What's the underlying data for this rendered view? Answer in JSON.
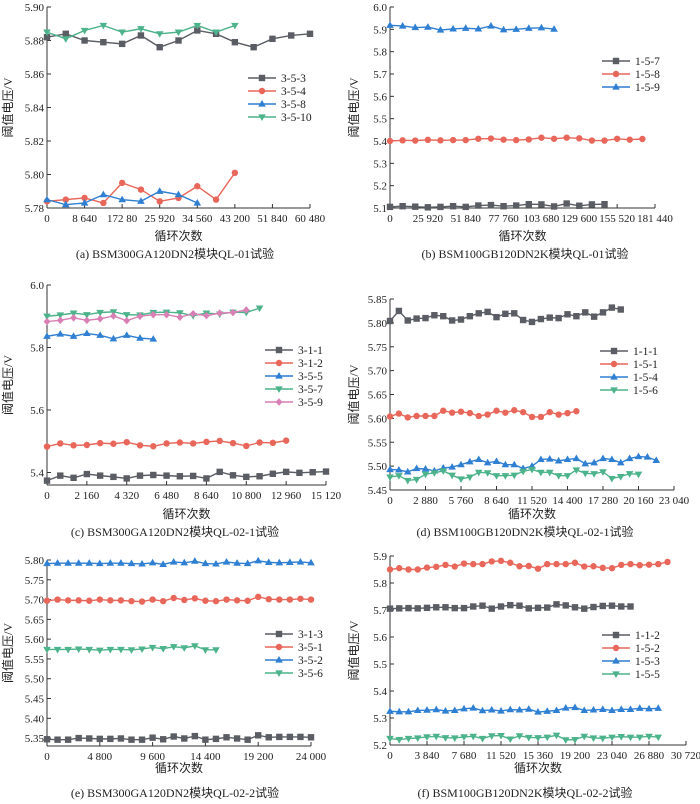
{
  "figure": {
    "colors": {
      "gray": "#5a5d63",
      "red": "#e8665a",
      "blue": "#2f7fd3",
      "green": "#4db38a",
      "pink": "#d97fb4"
    }
  },
  "chart_data": [
    {
      "id": "a",
      "type": "line",
      "caption": "(a) BSM300GA120DN2模块QL-01试验",
      "xlabel": "循环次数",
      "ylabel": "阈值电压/V",
      "xlim": [
        0,
        60480
      ],
      "ylim": [
        5.78,
        5.9
      ],
      "xticks": [
        0,
        8640,
        17280,
        25920,
        34560,
        43200,
        51840,
        60480
      ],
      "xtick_labels": [
        "0",
        "8 640",
        "172 80",
        "25 920",
        "34 560",
        "43 200",
        "51 840",
        "60 480"
      ],
      "yticks": [
        5.78,
        5.8,
        5.82,
        5.84,
        5.86,
        5.88,
        5.9
      ],
      "ytick_labels": [
        "5.78",
        "5.80",
        "5.82",
        "5.84",
        "5.86",
        "5.88",
        "5.90"
      ],
      "legend": "center-right",
      "series": [
        {
          "name": "3-5-3",
          "color": "gray",
          "marker": "square",
          "step": 4320,
          "values": [
            5.882,
            5.884,
            5.88,
            5.879,
            5.878,
            5.883,
            5.876,
            5.88,
            5.886,
            5.884,
            5.879,
            5.876,
            5.881,
            5.883,
            5.884
          ]
        },
        {
          "name": "3-5-4",
          "color": "red",
          "marker": "circle",
          "step": 4320,
          "values": [
            5.784,
            5.785,
            5.786,
            5.783,
            5.795,
            5.791,
            5.784,
            5.786,
            5.793,
            5.785,
            5.801
          ]
        },
        {
          "name": "3-5-8",
          "color": "blue",
          "marker": "triangle-up",
          "step": 4320,
          "values": [
            5.785,
            5.782,
            5.783,
            5.788,
            5.785,
            5.784,
            5.79,
            5.788,
            5.783
          ]
        },
        {
          "name": "3-5-10",
          "color": "green",
          "marker": "triangle-down",
          "step": 4320,
          "values": [
            5.885,
            5.881,
            5.886,
            5.889,
            5.885,
            5.887,
            5.884,
            5.885,
            5.889,
            5.885,
            5.889
          ]
        }
      ]
    },
    {
      "id": "b",
      "type": "line",
      "caption": "(b) BSM100GB120DN2K模块QL-01试验",
      "xlabel": "循环次数",
      "ylabel": "阈值电压/V",
      "xlim": [
        0,
        181440
      ],
      "ylim": [
        5.1,
        6.0
      ],
      "xticks": [
        0,
        25920,
        51840,
        77760,
        103680,
        129600,
        155520,
        181440
      ],
      "xtick_labels": [
        "0",
        "25 920",
        "51 840",
        "77 760",
        "103 680",
        "129 600",
        "155 520",
        "181 440"
      ],
      "yticks": [
        5.1,
        5.2,
        5.3,
        5.4,
        5.5,
        5.6,
        5.7,
        5.8,
        5.9,
        6.0
      ],
      "ytick_labels": [
        "5.1",
        "5.2",
        "5.3",
        "5.4",
        "5.5",
        "5.6",
        "5.7",
        "5.8",
        "5.9",
        "6.0"
      ],
      "legend": "upper-right",
      "series": [
        {
          "name": "1-5-7",
          "color": "gray",
          "marker": "square",
          "step": 8640,
          "values": [
            5.105,
            5.108,
            5.106,
            5.103,
            5.105,
            5.108,
            5.105,
            5.111,
            5.113,
            5.108,
            5.111,
            5.117,
            5.116,
            5.107,
            5.12,
            5.11,
            5.116,
            5.117
          ]
        },
        {
          "name": "1-5-8",
          "color": "red",
          "marker": "circle",
          "step": 8640,
          "values": [
            5.4,
            5.403,
            5.402,
            5.405,
            5.403,
            5.404,
            5.404,
            5.41,
            5.411,
            5.406,
            5.404,
            5.407,
            5.415,
            5.41,
            5.415,
            5.412,
            5.402,
            5.402,
            5.41,
            5.406,
            5.409
          ]
        },
        {
          "name": "1-5-9",
          "color": "blue",
          "marker": "triangle-up",
          "step": 8640,
          "values": [
            5.918,
            5.915,
            5.908,
            5.91,
            5.897,
            5.902,
            5.905,
            5.902,
            5.915,
            5.898,
            5.9,
            5.905,
            5.907,
            5.901
          ]
        }
      ]
    },
    {
      "id": "c",
      "type": "line",
      "caption": "(c) BSM300GA120DN2模块QL-02-1试验",
      "xlabel": "循环次数",
      "ylabel": "阈值电压/V",
      "xlim": [
        0,
        15120
      ],
      "ylim": [
        5.36,
        6.0
      ],
      "xticks": [
        0,
        2160,
        4320,
        6480,
        8640,
        10800,
        12960,
        15120
      ],
      "xtick_labels": [
        "0",
        "2 160",
        "4 320",
        "6 480",
        "8 640",
        "10 800",
        "12 960",
        "15 120"
      ],
      "yticks": [
        5.4,
        5.6,
        5.8,
        6.0
      ],
      "ytick_labels": [
        "5.4",
        "5.6",
        "5.8",
        "6.0"
      ],
      "legend": "center-right",
      "series": [
        {
          "name": "3-1-1",
          "color": "gray",
          "marker": "square",
          "step": 720,
          "values": [
            5.374,
            5.39,
            5.383,
            5.395,
            5.39,
            5.386,
            5.381,
            5.39,
            5.392,
            5.39,
            5.388,
            5.389,
            5.381,
            5.402,
            5.391,
            5.386,
            5.388,
            5.396,
            5.402,
            5.399,
            5.401,
            5.403
          ]
        },
        {
          "name": "3-1-2",
          "color": "red",
          "marker": "circle",
          "step": 720,
          "values": [
            5.483,
            5.493,
            5.487,
            5.488,
            5.494,
            5.492,
            5.497,
            5.487,
            5.484,
            5.493,
            5.496,
            5.493,
            5.498,
            5.501,
            5.494,
            5.485,
            5.496,
            5.495,
            5.502
          ]
        },
        {
          "name": "3-5-5",
          "color": "blue",
          "marker": "triangle-up",
          "step": 720,
          "values": [
            5.836,
            5.843,
            5.836,
            5.845,
            5.839,
            5.828,
            5.839,
            5.83,
            5.827
          ]
        },
        {
          "name": "3-5-7",
          "color": "green",
          "marker": "triangle-down",
          "step": 720,
          "values": [
            5.9,
            5.904,
            5.91,
            5.905,
            5.912,
            5.914,
            5.905,
            5.904,
            5.912,
            5.913,
            5.911,
            5.902,
            5.91,
            5.907,
            5.913,
            5.912,
            5.926
          ]
        },
        {
          "name": "3-5-9",
          "color": "pink",
          "marker": "diamond",
          "step": 720,
          "values": [
            5.883,
            5.887,
            5.895,
            5.887,
            5.892,
            5.901,
            5.886,
            5.9,
            5.905,
            5.905,
            5.897,
            5.908,
            5.902,
            5.91,
            5.912,
            5.92
          ]
        }
      ]
    },
    {
      "id": "d",
      "type": "line",
      "caption": "(d) BSM100GB120DN2K模块QL-02-1试验",
      "xlabel": "循环次数",
      "ylabel": "阈值电压/V",
      "xlim": [
        0,
        23040
      ],
      "ylim": [
        5.45,
        5.85
      ],
      "xticks": [
        0,
        2880,
        5760,
        8640,
        11520,
        14400,
        17280,
        20160,
        23040
      ],
      "xtick_labels": [
        "0",
        "2 880",
        "5 760",
        "8 640",
        "11 520",
        "14 400",
        "17 280",
        "20 160",
        "23 040"
      ],
      "yticks": [
        5.45,
        5.5,
        5.55,
        5.6,
        5.65,
        5.7,
        5.75,
        5.8,
        5.85
      ],
      "ytick_labels": [
        "5.45",
        "5.50",
        "5.55",
        "5.60",
        "5.65",
        "5.70",
        "5.75",
        "5.80",
        "5.85"
      ],
      "legend": "center-right",
      "series": [
        {
          "name": "1-1-1",
          "color": "gray",
          "marker": "square",
          "step": 720,
          "values": [
            5.804,
            5.825,
            5.805,
            5.809,
            5.81,
            5.816,
            5.814,
            5.805,
            5.807,
            5.814,
            5.82,
            5.823,
            5.812,
            5.819,
            5.82,
            5.806,
            5.802,
            5.808,
            5.811,
            5.81,
            5.818,
            5.814,
            5.822,
            5.813,
            5.822,
            5.832,
            5.828
          ]
        },
        {
          "name": "1-5-1",
          "color": "red",
          "marker": "circle",
          "step": 720,
          "values": [
            5.604,
            5.61,
            5.602,
            5.605,
            5.605,
            5.605,
            5.616,
            5.612,
            5.614,
            5.611,
            5.605,
            5.608,
            5.616,
            5.612,
            5.617,
            5.613,
            5.603,
            5.603,
            5.613,
            5.608,
            5.611,
            5.615
          ]
        },
        {
          "name": "1-5-4",
          "color": "blue",
          "marker": "triangle-up",
          "step": 720,
          "values": [
            5.493,
            5.492,
            5.488,
            5.495,
            5.494,
            5.49,
            5.496,
            5.498,
            5.503,
            5.509,
            5.514,
            5.507,
            5.51,
            5.503,
            5.503,
            5.495,
            5.5,
            5.514,
            5.515,
            5.511,
            5.514,
            5.516,
            5.505,
            5.507,
            5.516,
            5.514,
            5.507,
            5.516,
            5.52,
            5.519,
            5.512
          ]
        },
        {
          "name": "1-5-6",
          "color": "green",
          "marker": "triangle-down",
          "step": 720,
          "values": [
            5.477,
            5.48,
            5.47,
            5.472,
            5.483,
            5.486,
            5.49,
            5.481,
            5.473,
            5.477,
            5.487,
            5.486,
            5.48,
            5.48,
            5.481,
            5.489,
            5.493,
            5.487,
            5.487,
            5.48,
            5.48,
            5.492,
            5.485,
            5.484,
            5.488,
            5.474,
            5.478,
            5.484,
            5.483
          ]
        }
      ]
    },
    {
      "id": "e",
      "type": "line",
      "caption": "(e) BSM300GA120DN2模块QL-02-2试验",
      "xlabel": "循环次数",
      "ylabel": "阈值电压/V",
      "xlim": [
        0,
        24000
      ],
      "ylim": [
        5.33,
        5.8
      ],
      "xticks": [
        0,
        4800,
        9600,
        14400,
        19200,
        24000
      ],
      "xtick_labels": [
        "0",
        "4 800",
        "9 600",
        "14 400",
        "19 200",
        "24 000"
      ],
      "yticks": [
        5.35,
        5.4,
        5.45,
        5.5,
        5.55,
        5.6,
        5.65,
        5.7,
        5.75,
        5.8
      ],
      "ytick_labels": [
        "5.35",
        "5.40",
        "5.45",
        "5.50",
        "5.55",
        "5.60",
        "5.65",
        "5.70",
        "5.75",
        "5.80"
      ],
      "legend": "center-right",
      "series": [
        {
          "name": "3-1-3",
          "color": "gray",
          "marker": "square",
          "step": 960,
          "values": [
            5.347,
            5.346,
            5.346,
            5.35,
            5.349,
            5.348,
            5.348,
            5.349,
            5.346,
            5.346,
            5.351,
            5.347,
            5.354,
            5.349,
            5.355,
            5.346,
            5.348,
            5.352,
            5.349,
            5.346,
            5.357,
            5.352,
            5.353,
            5.353,
            5.353,
            5.352
          ]
        },
        {
          "name": "3-5-1",
          "color": "red",
          "marker": "circle",
          "step": 960,
          "values": [
            5.697,
            5.7,
            5.698,
            5.698,
            5.697,
            5.7,
            5.698,
            5.698,
            5.696,
            5.695,
            5.7,
            5.696,
            5.704,
            5.699,
            5.703,
            5.697,
            5.696,
            5.7,
            5.698,
            5.697,
            5.707,
            5.701,
            5.7,
            5.7,
            5.702,
            5.7
          ]
        },
        {
          "name": "3-5-2",
          "color": "blue",
          "marker": "triangle-up",
          "step": 960,
          "values": [
            5.791,
            5.792,
            5.792,
            5.792,
            5.792,
            5.791,
            5.792,
            5.792,
            5.791,
            5.79,
            5.793,
            5.789,
            5.795,
            5.793,
            5.797,
            5.791,
            5.79,
            5.795,
            5.792,
            5.791,
            5.798,
            5.794,
            5.793,
            5.794,
            5.795,
            5.793
          ]
        },
        {
          "name": "3-5-6",
          "color": "green",
          "marker": "triangle-down",
          "step": 960,
          "values": [
            5.574,
            5.574,
            5.574,
            5.575,
            5.574,
            5.572,
            5.574,
            5.574,
            5.573,
            5.575,
            5.579,
            5.576,
            5.581,
            5.578,
            5.583,
            5.573,
            5.573
          ]
        }
      ]
    },
    {
      "id": "f",
      "type": "line",
      "caption": "(f) BSM100GB120DN2K模块QL-02-2试验",
      "xlabel": "循环次数",
      "ylabel": "阈值电压/V",
      "xlim": [
        0,
        30720
      ],
      "ylim": [
        5.2,
        5.9
      ],
      "xticks": [
        0,
        3840,
        7680,
        11520,
        15360,
        19200,
        23040,
        26880,
        30720
      ],
      "xtick_labels": [
        "0",
        "3 840",
        "7 680",
        "11 520",
        "15 360",
        "19 200",
        "23 040",
        "26 880",
        "30 720"
      ],
      "yticks": [
        5.2,
        5.3,
        5.4,
        5.5,
        5.6,
        5.7,
        5.8,
        5.9
      ],
      "ytick_labels": [
        "5.2",
        "5.3",
        "5.4",
        "5.5",
        "5.6",
        "5.7",
        "5.8",
        "5.9"
      ],
      "legend": "center-right",
      "series": [
        {
          "name": "1-1-2",
          "color": "gray",
          "marker": "square",
          "step": 960,
          "values": [
            5.705,
            5.706,
            5.707,
            5.706,
            5.708,
            5.71,
            5.71,
            5.707,
            5.707,
            5.713,
            5.716,
            5.705,
            5.713,
            5.718,
            5.716,
            5.706,
            5.708,
            5.709,
            5.721,
            5.717,
            5.71,
            5.705,
            5.711,
            5.715,
            5.716,
            5.713,
            5.713
          ]
        },
        {
          "name": "1-5-2",
          "color": "red",
          "marker": "circle",
          "step": 960,
          "values": [
            5.85,
            5.855,
            5.85,
            5.85,
            5.857,
            5.86,
            5.867,
            5.861,
            5.872,
            5.87,
            5.87,
            5.88,
            5.882,
            5.875,
            5.862,
            5.863,
            5.853,
            5.87,
            5.87,
            5.87,
            5.875,
            5.861,
            5.862,
            5.856,
            5.855,
            5.867,
            5.87,
            5.866,
            5.868,
            5.87,
            5.878
          ]
        },
        {
          "name": "1-5-3",
          "color": "blue",
          "marker": "triangle-up",
          "step": 960,
          "values": [
            5.325,
            5.323,
            5.323,
            5.328,
            5.329,
            5.331,
            5.326,
            5.328,
            5.334,
            5.337,
            5.327,
            5.33,
            5.326,
            5.331,
            5.33,
            5.333,
            5.322,
            5.325,
            5.328,
            5.337,
            5.339,
            5.328,
            5.33,
            5.332,
            5.328,
            5.332,
            5.332,
            5.336,
            5.334,
            5.336
          ]
        },
        {
          "name": "1-5-5",
          "color": "green",
          "marker": "triangle-down",
          "step": 960,
          "values": [
            5.224,
            5.22,
            5.224,
            5.226,
            5.23,
            5.232,
            5.227,
            5.226,
            5.23,
            5.232,
            5.224,
            5.234,
            5.235,
            5.222,
            5.234,
            5.228,
            5.227,
            5.229,
            5.236,
            5.219,
            5.22,
            5.232,
            5.226,
            5.225,
            5.229,
            5.231,
            5.229,
            5.229,
            5.232,
            5.229
          ]
        }
      ]
    }
  ]
}
